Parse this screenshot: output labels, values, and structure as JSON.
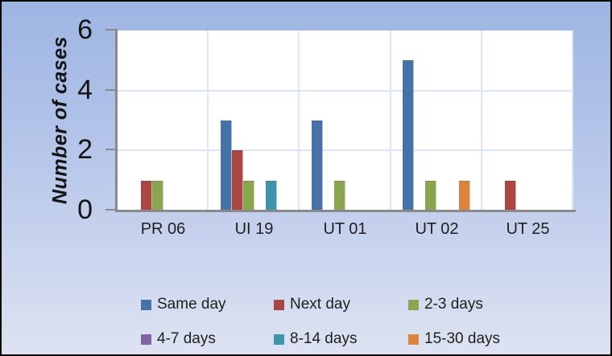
{
  "window": {
    "background_top": "#9eb6e3",
    "background_bottom": "#dde3f1",
    "border_color": "#000000",
    "plot_background": "#ffffff",
    "gridline_color": "#dce6f5",
    "axis_color": "#8a8a8a"
  },
  "chart_data": {
    "type": "bar",
    "title": "",
    "xlabel": "",
    "ylabel": "Number of cases",
    "ylim": [
      0,
      6
    ],
    "yticks": [
      6,
      4,
      2,
      0
    ],
    "grid": true,
    "legend_position": "bottom",
    "categories": [
      "PR 06",
      "UI 19",
      "UT 01",
      "UT 02",
      "UT 25"
    ],
    "series": [
      {
        "name": "Same day",
        "color": "#4572A7",
        "values": [
          0,
          3,
          3,
          5,
          0
        ]
      },
      {
        "name": "Next day",
        "color": "#AA4643",
        "values": [
          1,
          2,
          0,
          0,
          1
        ]
      },
      {
        "name": "2-3 days",
        "color": "#89A54E",
        "values": [
          1,
          1,
          1,
          1,
          0
        ]
      },
      {
        "name": "4-7 days",
        "color": "#8064A2",
        "values": [
          0,
          0,
          0,
          0,
          0
        ]
      },
      {
        "name": "8-14 days",
        "color": "#3D96AE",
        "values": [
          0,
          1,
          0,
          0,
          0
        ]
      },
      {
        "name": "15-30 days",
        "color": "#DB843D",
        "values": [
          0,
          0,
          0,
          1,
          0
        ]
      }
    ]
  }
}
